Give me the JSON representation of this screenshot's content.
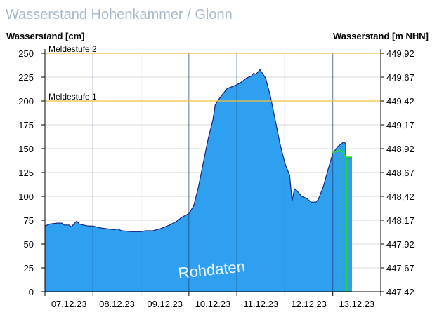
{
  "title": "Wasserstand Hohenkammer / Glonn",
  "left_axis_label": "Wasserstand [cm]",
  "right_axis_label": "Wasserstand [m NHN]",
  "watermark": "Rohdaten",
  "chart_data": {
    "type": "area",
    "y_left": {
      "label": "Wasserstand [cm]",
      "range": [
        0,
        250
      ],
      "ticks": [
        0,
        25,
        50,
        75,
        100,
        125,
        150,
        175,
        200,
        225,
        250
      ]
    },
    "y_right": {
      "label": "Wasserstand [m NHN]",
      "ticks": [
        "447,42",
        "447,67",
        "447,92",
        "448,17",
        "448,42",
        "448,67",
        "448,92",
        "449,17",
        "449,42",
        "449,67",
        "449,92"
      ]
    },
    "x_categories": [
      "07.12.23",
      "08.12.23",
      "09.12.23",
      "10.12.23",
      "11.12.23",
      "12.12.23",
      "13.12.23"
    ],
    "x_range_days": [
      0,
      7
    ],
    "thresholds": [
      {
        "label": "Meldestufe 1",
        "value": 200,
        "color": "#f0c040"
      },
      {
        "label": "Meldestufe 2",
        "value": 250,
        "color": "#f0c040"
      }
    ],
    "series": [
      {
        "fill": "#2fa0f0",
        "line": "#1a237e",
        "points": [
          [
            0.0,
            69
          ],
          [
            0.1,
            71
          ],
          [
            0.25,
            72
          ],
          [
            0.35,
            72
          ],
          [
            0.4,
            70
          ],
          [
            0.5,
            70
          ],
          [
            0.55,
            68
          ],
          [
            0.62,
            72
          ],
          [
            0.66,
            74
          ],
          [
            0.72,
            71
          ],
          [
            0.8,
            70
          ],
          [
            0.9,
            69
          ],
          [
            1.0,
            69
          ],
          [
            1.15,
            67
          ],
          [
            1.3,
            66
          ],
          [
            1.45,
            65
          ],
          [
            1.5,
            66
          ],
          [
            1.6,
            64
          ],
          [
            1.8,
            63
          ],
          [
            2.0,
            63
          ],
          [
            2.1,
            64
          ],
          [
            2.25,
            64
          ],
          [
            2.4,
            66
          ],
          [
            2.6,
            70
          ],
          [
            2.75,
            74
          ],
          [
            2.85,
            78
          ],
          [
            3.0,
            82
          ],
          [
            3.1,
            90
          ],
          [
            3.2,
            110
          ],
          [
            3.3,
            135
          ],
          [
            3.4,
            160
          ],
          [
            3.5,
            180
          ],
          [
            3.55,
            196
          ],
          [
            3.6,
            200
          ],
          [
            3.7,
            207
          ],
          [
            3.8,
            213
          ],
          [
            3.9,
            215
          ],
          [
            4.0,
            217
          ],
          [
            4.1,
            220
          ],
          [
            4.2,
            224
          ],
          [
            4.3,
            226
          ],
          [
            4.35,
            229
          ],
          [
            4.4,
            228
          ],
          [
            4.45,
            231
          ],
          [
            4.48,
            233
          ],
          [
            4.52,
            230
          ],
          [
            4.6,
            224
          ],
          [
            4.7,
            205
          ],
          [
            4.8,
            180
          ],
          [
            4.9,
            155
          ],
          [
            5.0,
            135
          ],
          [
            5.1,
            122
          ],
          [
            5.15,
            95
          ],
          [
            5.2,
            108
          ],
          [
            5.25,
            106
          ],
          [
            5.35,
            100
          ],
          [
            5.45,
            98
          ],
          [
            5.55,
            94
          ],
          [
            5.65,
            94
          ],
          [
            5.7,
            97
          ],
          [
            5.8,
            110
          ],
          [
            5.9,
            128
          ],
          [
            6.0,
            145
          ],
          [
            6.1,
            152
          ],
          [
            6.2,
            156
          ],
          [
            6.23,
            157
          ],
          [
            6.27,
            155
          ],
          [
            6.27,
            140
          ],
          [
            6.4,
            140
          ]
        ]
      },
      {
        "color": "#22dd22",
        "points": [
          [
            6.0,
            145
          ],
          [
            6.05,
            147
          ],
          [
            6.15,
            148
          ],
          [
            6.22,
            146
          ],
          [
            6.27,
            141
          ],
          [
            6.4,
            141
          ]
        ]
      }
    ],
    "grid": true
  }
}
